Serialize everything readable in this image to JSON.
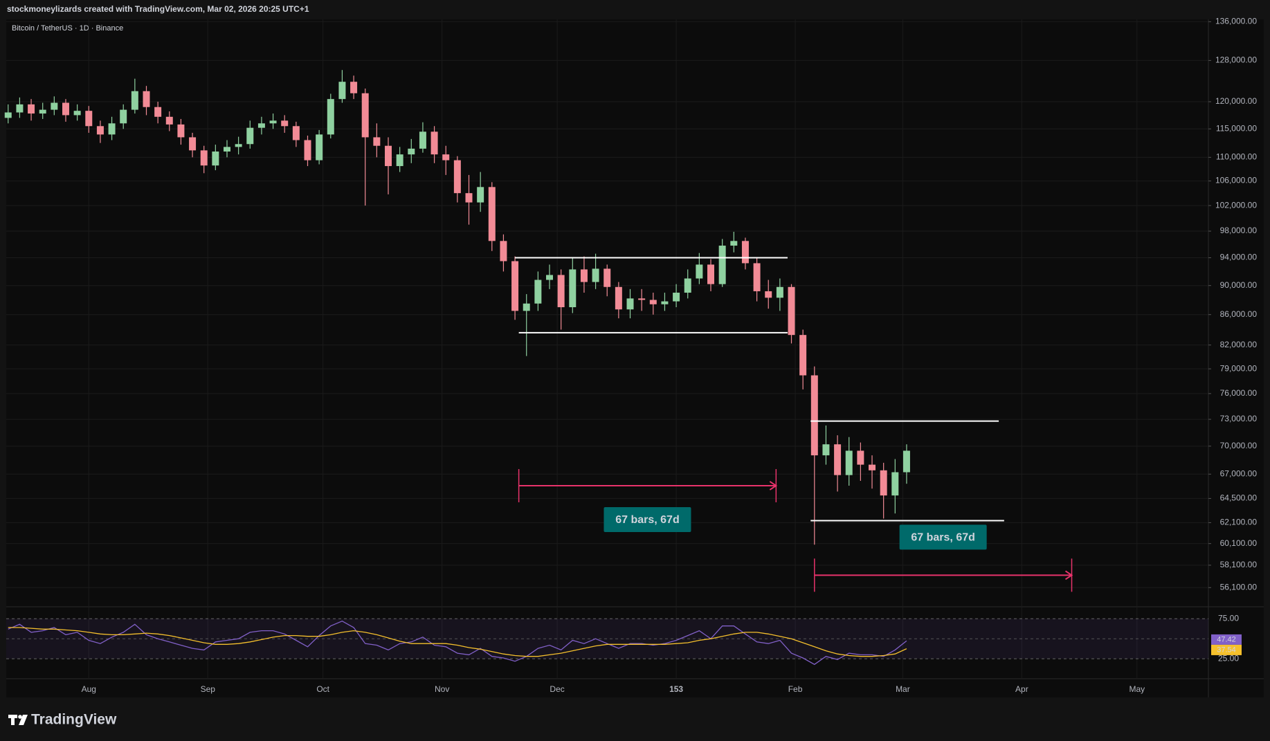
{
  "header": "stockmoneylizards created with TradingView.com, Mar 02, 2026 20:25 UTC+1",
  "footer": {
    "brand": "TradingView"
  },
  "chart_data": {
    "type": "candlestick",
    "title": "Bitcoin / TetherUS · 1D · Binance",
    "x": [
      -21,
      -18,
      -15,
      -12,
      -9,
      -6,
      -3,
      0,
      3,
      6,
      9,
      12,
      15,
      18,
      21,
      24,
      27,
      30,
      33,
      36,
      39,
      42,
      45,
      48,
      51,
      54,
      57,
      60,
      63,
      66,
      69,
      72,
      75,
      78,
      81,
      84,
      87,
      90,
      93,
      96,
      99,
      102,
      105,
      108,
      111,
      114,
      117,
      120,
      123,
      126,
      129,
      132,
      135,
      138,
      141,
      144,
      147,
      150,
      153,
      156,
      159,
      162,
      165,
      168,
      171,
      174,
      177,
      180,
      183,
      186,
      189,
      192,
      195,
      198,
      201,
      204,
      207,
      210,
      213
    ],
    "open": [
      117000,
      118000,
      119500,
      117800,
      118500,
      119800,
      117500,
      118300,
      115500,
      114000,
      116000,
      118500,
      122000,
      119000,
      117200,
      115800,
      113500,
      111200,
      108600,
      111000,
      111800,
      112300,
      115200,
      116000,
      116500,
      115500,
      113000,
      109500,
      114000,
      120500,
      123800,
      121600,
      113500,
      112000,
      108500,
      110500,
      111500,
      114500,
      110500,
      109500,
      104000,
      102500,
      105000,
      96500,
      93500,
      86500,
      87500,
      90800,
      91500,
      87000,
      92300,
      90500,
      92400,
      89800,
      86700,
      88200,
      88000,
      87400,
      87800,
      89000,
      91000,
      93000,
      90200,
      95800,
      96500,
      93200,
      89200,
      88300,
      89800,
      83300,
      78200,
      69000,
      70200,
      66900,
      69500,
      68000,
      67400,
      64800,
      67200
    ],
    "high": [
      119500,
      120800,
      120500,
      119800,
      121000,
      120500,
      119500,
      119200,
      116500,
      117200,
      119500,
      124400,
      123000,
      120000,
      118200,
      116800,
      114300,
      112000,
      112200,
      113000,
      113600,
      116500,
      117200,
      117800,
      117500,
      116300,
      113800,
      114800,
      121500,
      126100,
      125000,
      122500,
      116000,
      113500,
      111800,
      113200,
      116200,
      115500,
      112000,
      110200,
      107000,
      107500,
      105800,
      97500,
      94200,
      88800,
      92000,
      93000,
      92300,
      94000,
      94200,
      94600,
      93000,
      90500,
      89500,
      89500,
      89000,
      89000,
      90200,
      92300,
      94700,
      93800,
      96800,
      97900,
      97000,
      94000,
      90800,
      91000,
      90200,
      84000,
      79300,
      72300,
      71200,
      71000,
      70400,
      69000,
      68200,
      68600,
      70200
    ],
    "low": [
      116000,
      117000,
      116500,
      116800,
      117500,
      116300,
      116500,
      114300,
      112500,
      113000,
      115000,
      117800,
      117500,
      116000,
      114600,
      112200,
      110000,
      107300,
      107800,
      110000,
      110500,
      111500,
      114000,
      115000,
      114300,
      111800,
      108500,
      108800,
      113300,
      119800,
      120500,
      102000,
      110000,
      103800,
      107500,
      109000,
      110800,
      109000,
      107000,
      102500,
      99000,
      101000,
      95000,
      92000,
      85300,
      80600,
      86500,
      89500,
      84000,
      86200,
      89000,
      89500,
      88500,
      85500,
      85500,
      86500,
      86000,
      86500,
      87000,
      88200,
      90200,
      89200,
      89800,
      94800,
      92300,
      87800,
      86800,
      86500,
      82200,
      76500,
      60000,
      68000,
      65200,
      65800,
      66300,
      65500,
      62500,
      63000,
      66000
    ],
    "close": [
      118000,
      119500,
      117800,
      118500,
      119800,
      117500,
      118300,
      115500,
      114000,
      116000,
      118500,
      122000,
      119000,
      117200,
      115800,
      113500,
      111200,
      108600,
      111000,
      111800,
      112300,
      115200,
      116000,
      116500,
      115500,
      113000,
      109500,
      114000,
      120500,
      123800,
      121600,
      113500,
      112000,
      108500,
      110500,
      111500,
      114500,
      110500,
      109500,
      104000,
      102500,
      105000,
      96500,
      93500,
      86500,
      87500,
      90800,
      91500,
      87000,
      92300,
      90500,
      92400,
      89800,
      86700,
      88200,
      88000,
      87400,
      87800,
      89000,
      91000,
      93000,
      90200,
      95800,
      96500,
      93200,
      89200,
      88300,
      89800,
      83300,
      78200,
      69000,
      70200,
      66900,
      69500,
      68000,
      67400,
      64800,
      67200,
      69500
    ],
    "up_color": "#8fd1a0",
    "down_color": "#f28b96",
    "xlim": [
      -21.5,
      291.6
    ],
    "xticks": [
      {
        "value": 0,
        "label": "Aug"
      },
      {
        "value": 31,
        "label": "Sep"
      },
      {
        "value": 61,
        "label": "Oct"
      },
      {
        "value": 92,
        "label": "Nov"
      },
      {
        "value": 122,
        "label": "Dec"
      },
      153,
      {
        "value": 184,
        "label": "Feb"
      },
      {
        "value": 212,
        "label": "Mar"
      },
      {
        "value": 243,
        "label": "Apr"
      },
      {
        "value": 273,
        "label": "May"
      }
    ],
    "ylim": [
      54500,
      136500
    ],
    "log_scale": true,
    "grid": true,
    "yticks": [
      {
        "value": 136000,
        "label": "136,000.00"
      },
      {
        "value": 128000,
        "label": "128,000.00"
      },
      {
        "value": 120000,
        "label": "120,000.00"
      },
      {
        "value": 115000,
        "label": "115,000.00"
      },
      {
        "value": 110000,
        "label": "110,000.00"
      },
      {
        "value": 106000,
        "label": "106,000.00"
      },
      {
        "value": 102000,
        "label": "102,000.00"
      },
      {
        "value": 98000,
        "label": "98,000.00"
      },
      {
        "value": 94000,
        "label": "94,000.00"
      },
      {
        "value": 90000,
        "label": "90,000.00"
      },
      {
        "value": 86000,
        "label": "86,000.00"
      },
      {
        "value": 82000,
        "label": "82,000.00"
      },
      {
        "value": 79000,
        "label": "79,000.00"
      },
      {
        "value": 76000,
        "label": "76,000.00"
      },
      {
        "value": 73000,
        "label": "73,000.00"
      },
      {
        "value": 70000,
        "label": "70,000.00"
      },
      {
        "value": 67000,
        "label": "67,000.00"
      },
      {
        "value": 64500,
        "label": "64,500.00"
      },
      {
        "value": 62100,
        "label": "62,100.00"
      },
      {
        "value": 60100,
        "label": "60,100.00"
      },
      {
        "value": 58100,
        "label": "58,100.00"
      },
      {
        "value": 56100,
        "label": "56,100.00"
      }
    ],
    "levels": [
      {
        "price": 94000,
        "from": 111,
        "to": 182
      },
      {
        "price": 83600,
        "from": 112,
        "to": 182
      },
      {
        "price": 72800,
        "from": 188,
        "to": 237
      },
      {
        "price": 62300,
        "from": 188,
        "to": 238.4
      }
    ],
    "level_color": "#ffffff",
    "ranges": [
      {
        "from": 112,
        "to": 179,
        "price": 65800,
        "label": "67 bars, 67d"
      },
      {
        "from": 189,
        "to": 256,
        "price": 57200,
        "label": "67 bars, 67d"
      }
    ],
    "range_color": "#e8336b",
    "range_label_color": "#006a6a",
    "rsi": {
      "ylim": [
        1,
        89
      ],
      "yticks": [
        {
          "value": 75,
          "label": "75.00"
        },
        {
          "value": 25,
          "label": "25.00"
        }
      ],
      "band_color": "#7e57c2",
      "line": {
        "color": "#8160c8",
        "values": [
          62,
          68,
          58,
          60,
          64,
          55,
          58,
          48,
          44,
          52,
          58,
          68,
          55,
          50,
          46,
          42,
          38,
          36,
          46,
          48,
          50,
          58,
          60,
          60,
          56,
          48,
          40,
          54,
          66,
          72,
          64,
          44,
          42,
          36,
          44,
          46,
          52,
          42,
          40,
          32,
          30,
          38,
          28,
          26,
          22,
          28,
          38,
          42,
          36,
          48,
          44,
          50,
          44,
          38,
          44,
          44,
          42,
          44,
          48,
          54,
          60,
          50,
          66,
          66,
          56,
          46,
          44,
          48,
          32,
          26,
          18,
          28,
          24,
          32,
          30,
          30,
          28,
          36,
          47.42
        ]
      },
      "ma": {
        "color": "#f5c02c",
        "values": [
          64,
          64,
          63,
          62,
          62,
          61,
          60,
          58,
          56,
          55,
          55,
          56,
          57,
          56,
          54,
          51,
          48,
          45,
          43,
          43,
          44,
          46,
          49,
          52,
          54,
          54,
          53,
          53,
          55,
          58,
          60,
          58,
          55,
          51,
          47,
          44,
          44,
          44,
          44,
          42,
          39,
          37,
          34,
          31,
          29,
          28,
          28,
          30,
          32,
          35,
          38,
          41,
          43,
          43,
          43,
          43,
          43,
          43,
          44,
          45,
          48,
          50,
          53,
          56,
          58,
          58,
          56,
          53,
          50,
          45,
          40,
          35,
          31,
          29,
          28,
          28,
          29,
          31,
          37.54
        ]
      }
    }
  }
}
